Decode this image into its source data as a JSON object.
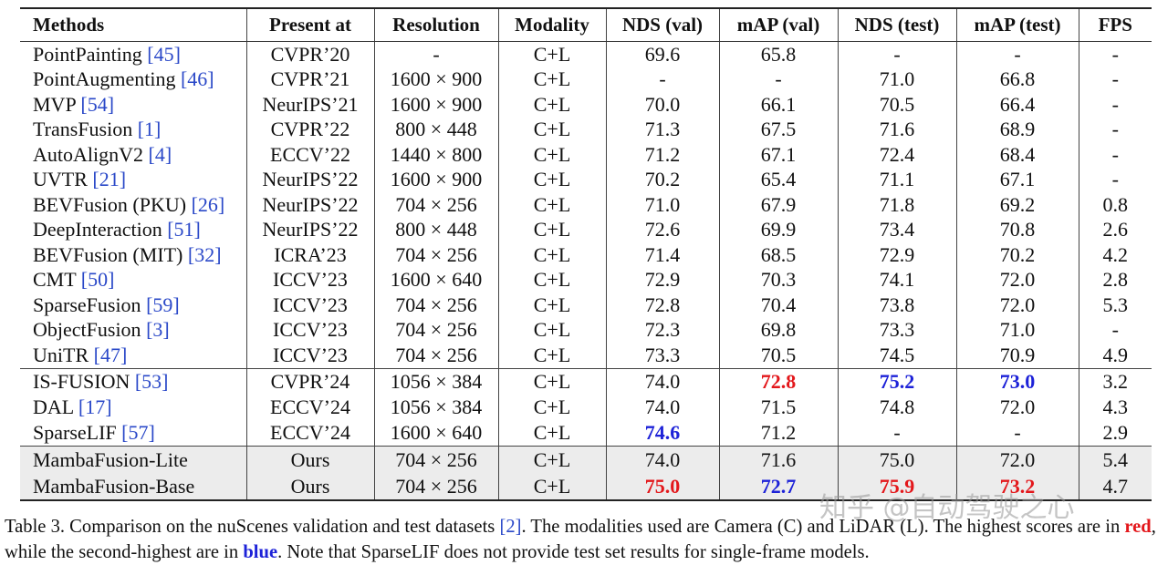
{
  "table": {
    "columns": [
      "Methods",
      "Present at",
      "Resolution",
      "Modality",
      "NDS (val)",
      "mAP (val)",
      "NDS (test)",
      "mAP (test)",
      "FPS"
    ],
    "groups": [
      [
        [
          "PointPainting",
          "[45]",
          "CVPR’20",
          "-",
          "C+L",
          "69.6",
          "65.8",
          "-",
          "-",
          "-"
        ],
        [
          "PointAugmenting",
          "[46]",
          "CVPR’21",
          "1600 × 900",
          "C+L",
          "-",
          "-",
          "71.0",
          "66.8",
          "-"
        ],
        [
          "MVP",
          "[54]",
          "NeurIPS’21",
          "1600 × 900",
          "C+L",
          "70.0",
          "66.1",
          "70.5",
          "66.4",
          "-"
        ],
        [
          "TransFusion",
          "[1]",
          "CVPR’22",
          "800 × 448",
          "C+L",
          "71.3",
          "67.5",
          "71.6",
          "68.9",
          "-"
        ],
        [
          "AutoAlignV2",
          "[4]",
          "ECCV’22",
          "1440 × 800",
          "C+L",
          "71.2",
          "67.1",
          "72.4",
          "68.4",
          "-"
        ],
        [
          "UVTR",
          "[21]",
          "NeurIPS’22",
          "1600 × 900",
          "C+L",
          "70.2",
          "65.4",
          "71.1",
          "67.1",
          "-"
        ],
        [
          "BEVFusion (PKU)",
          "[26]",
          "NeurIPS’22",
          "704 × 256",
          "C+L",
          "71.0",
          "67.9",
          "71.8",
          "69.2",
          "0.8"
        ],
        [
          "DeepInteraction",
          "[51]",
          "NeurIPS’22",
          "800 × 448",
          "C+L",
          "72.6",
          "69.9",
          "73.4",
          "70.8",
          "2.6"
        ],
        [
          "BEVFusion (MIT)",
          "[32]",
          "ICRA’23",
          "704 × 256",
          "C+L",
          "71.4",
          "68.5",
          "72.9",
          "70.2",
          "4.2"
        ],
        [
          "CMT",
          "[50]",
          "ICCV’23",
          "1600 × 640",
          "C+L",
          "72.9",
          "70.3",
          "74.1",
          "72.0",
          "2.8"
        ],
        [
          "SparseFusion",
          "[59]",
          "ICCV’23",
          "704 × 256",
          "C+L",
          "72.8",
          "70.4",
          "73.8",
          "72.0",
          "5.3"
        ],
        [
          "ObjectFusion",
          "[3]",
          "ICCV’23",
          "704 × 256",
          "C+L",
          "72.3",
          "69.8",
          "73.3",
          "71.0",
          "-"
        ],
        [
          "UniTR",
          "[47]",
          "ICCV’23",
          "704 × 256",
          "C+L",
          "73.3",
          "70.5",
          "74.5",
          "70.9",
          "4.9"
        ]
      ],
      [
        [
          "IS-FUSION",
          "[53]",
          "CVPR’24",
          "1056 × 384",
          "C+L",
          "74.0",
          {
            "text": "72.8",
            "color": "red"
          },
          {
            "text": "75.2",
            "color": "blue"
          },
          {
            "text": "73.0",
            "color": "blue"
          },
          "3.2"
        ],
        [
          "DAL",
          "[17]",
          "ECCV’24",
          "1056 × 384",
          "C+L",
          "74.0",
          "71.5",
          "74.8",
          "72.0",
          "4.3"
        ],
        [
          "SparseLIF",
          "[57]",
          "ECCV’24",
          "1600 × 640",
          "C+L",
          {
            "text": "74.6",
            "color": "blue"
          },
          "71.2",
          "-",
          "-",
          "2.9"
        ]
      ],
      [
        [
          "MambaFusion-Lite",
          null,
          "Ours",
          "704 × 256",
          "C+L",
          "74.0",
          "71.6",
          "75.0",
          "72.0",
          "5.4"
        ],
        [
          "MambaFusion-Base",
          null,
          "Ours",
          "704 × 256",
          "C+L",
          {
            "text": "75.0",
            "color": "red"
          },
          {
            "text": "72.7",
            "color": "blue"
          },
          {
            "text": "75.9",
            "color": "red"
          },
          {
            "text": "73.2",
            "color": "red"
          },
          "4.7"
        ]
      ]
    ]
  },
  "caption": [
    "Table 3. Comparison on the nuScenes validation and test datasets ",
    "[2]",
    ". The modalities used are Camera (C) and LiDAR (L). The highest scores are in ",
    "red",
    ", while the second-highest are in ",
    "blue",
    ". Note that SparseLIF does not provide test set results for single-frame models."
  ],
  "watermark": "知乎 @自动驾驶之心"
}
